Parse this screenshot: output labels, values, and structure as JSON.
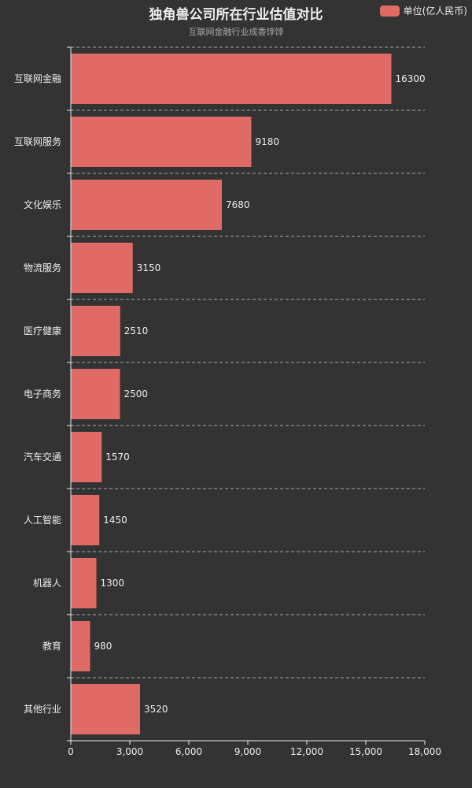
{
  "chart_data": {
    "type": "bar",
    "orientation": "horizontal",
    "title": "独角兽公司所在行业估值对比",
    "subtitle": "互联网金融行业成香饽饽",
    "categories": [
      "互联网金融",
      "互联网服务",
      "文化娱乐",
      "物流服务",
      "医疗健康",
      "电子商务",
      "汽车交通",
      "人工智能",
      "机器人",
      "教育",
      "其他行业"
    ],
    "series": [
      {
        "name": "单位(亿人民币)",
        "values": [
          16300,
          9180,
          7680,
          3150,
          2510,
          2500,
          1570,
          1450,
          1300,
          980,
          3520
        ]
      }
    ],
    "xlim": [
      0,
      18000
    ],
    "x_ticks": [
      "0",
      "3,000",
      "6,000",
      "9,000",
      "12,000",
      "15,000",
      "18,000"
    ],
    "x_tick_values": [
      0,
      3000,
      6000,
      9000,
      12000,
      15000,
      18000
    ],
    "grid": "horizontal dashed",
    "legend_position": "top-right",
    "data_labels": true
  },
  "colors": {
    "background": "#333333",
    "bar": "#e06b66",
    "text": "#eeeeee",
    "subtext": "#aaaaaa",
    "axis": "#eeeeee",
    "grid": "#aaaaaa"
  }
}
